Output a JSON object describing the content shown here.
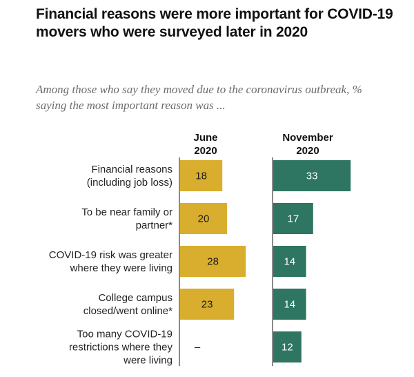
{
  "chart_data": {
    "type": "bar",
    "orientation": "horizontal",
    "title": "Financial reasons were more important for COVID-19 movers who were surveyed later in 2020",
    "subtitle": "Among those who say they moved due to the coronavirus outbreak, % saying the most important reason was ...",
    "categories": [
      [
        "Financial reasons",
        "(including job loss)"
      ],
      [
        "To be near family or",
        "partner*"
      ],
      [
        "COVID-19 risk was greater",
        "where they were living"
      ],
      [
        "College campus",
        "closed/went online*"
      ],
      [
        "Too many COVID-19",
        "restrictions where they",
        "were living"
      ]
    ],
    "series": [
      {
        "name": "June 2020",
        "header": [
          "June",
          "2020"
        ],
        "color": "#D9AE2E",
        "label_color": "#1a1a1a",
        "values": [
          18,
          20,
          28,
          23,
          null
        ],
        "missing_label": "–"
      },
      {
        "name": "November 2020",
        "header": [
          "November",
          "2020"
        ],
        "color": "#2E7562",
        "label_color": "#ffffff",
        "values": [
          33,
          17,
          14,
          14,
          12
        ],
        "missing_label": "–"
      }
    ],
    "xlabel": "",
    "ylabel": "",
    "grid": false,
    "legend": "none"
  }
}
